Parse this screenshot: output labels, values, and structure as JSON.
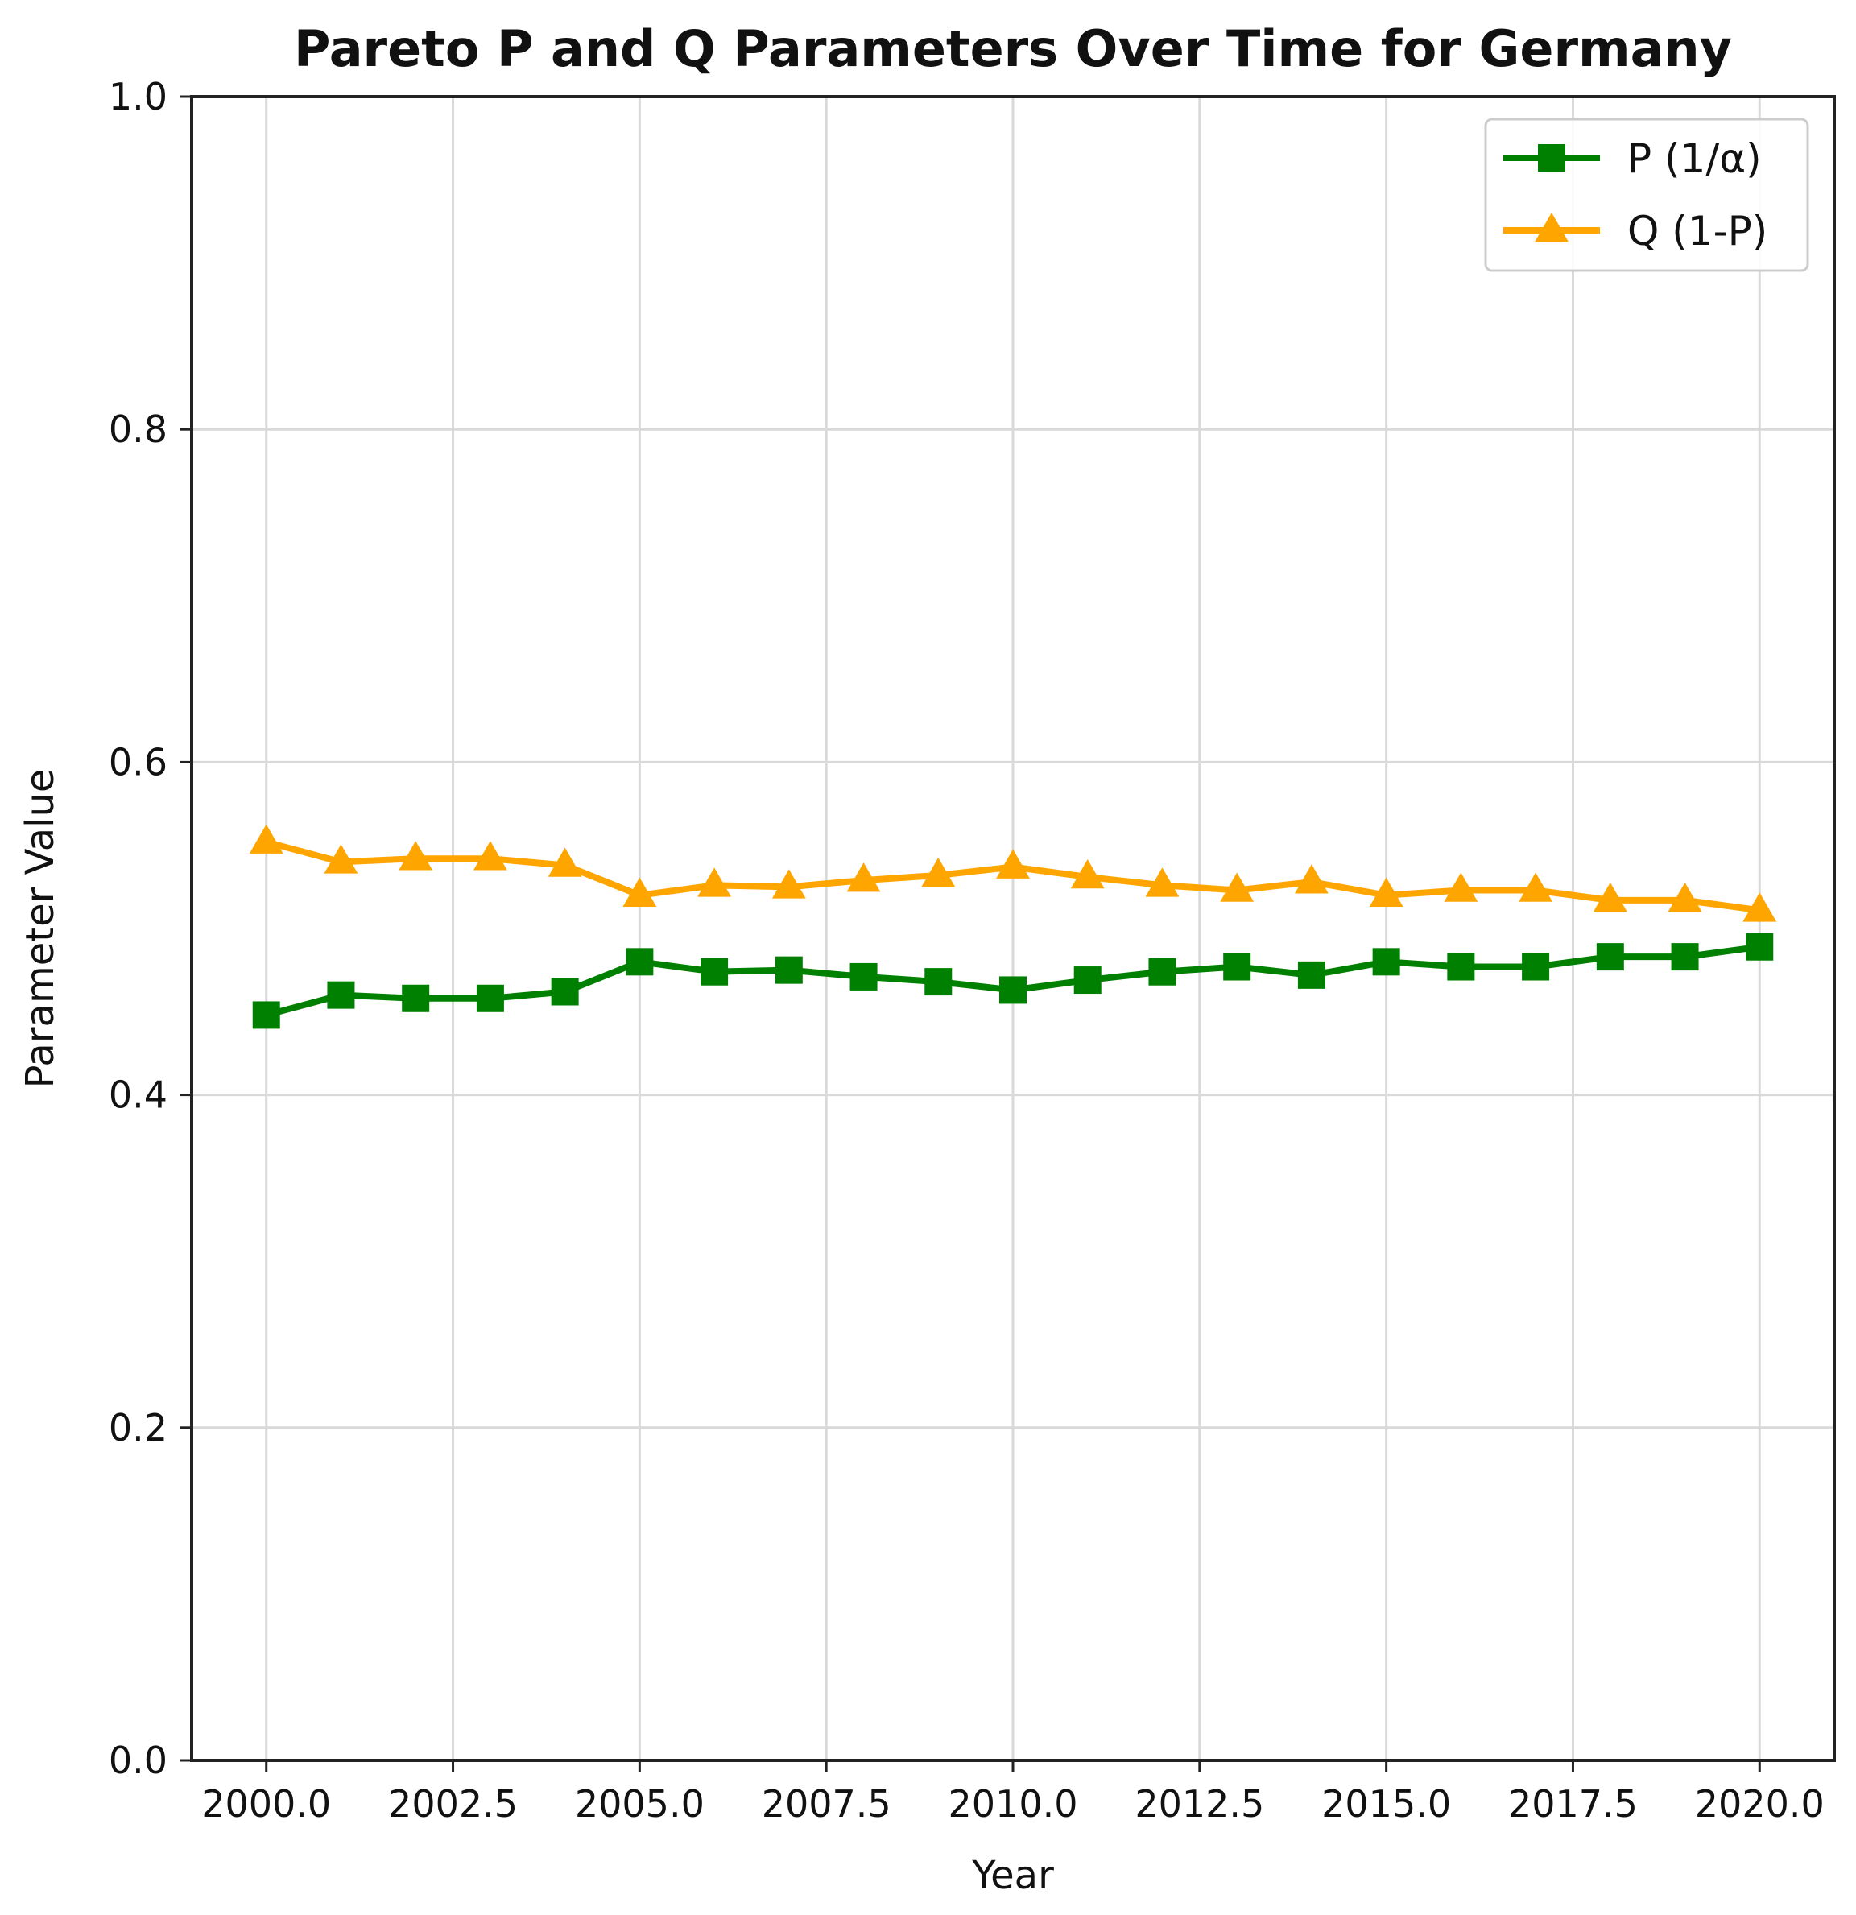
{
  "chart_data": {
    "type": "line",
    "title": "Pareto P and Q Parameters Over Time for Germany",
    "xlabel": "Year",
    "ylabel": "Parameter Value",
    "xlim": [
      1999.0,
      2021.0
    ],
    "ylim": [
      0.0,
      1.0
    ],
    "xticks": [
      2000.0,
      2002.5,
      2005.0,
      2007.5,
      2010.0,
      2012.5,
      2015.0,
      2017.5,
      2020.0
    ],
    "xtick_labels": [
      "2000.0",
      "2002.5",
      "2005.0",
      "2007.5",
      "2010.0",
      "2012.5",
      "2015.0",
      "2017.5",
      "2020.0"
    ],
    "yticks": [
      0.0,
      0.2,
      0.4,
      0.6,
      0.8,
      1.0
    ],
    "ytick_labels": [
      "0.0",
      "0.2",
      "0.4",
      "0.6",
      "0.8",
      "1.0"
    ],
    "grid": true,
    "legend_position": "top-right",
    "x": [
      2000,
      2001,
      2002,
      2003,
      2004,
      2005,
      2006,
      2007,
      2008,
      2009,
      2010,
      2011,
      2012,
      2013,
      2014,
      2015,
      2016,
      2017,
      2018,
      2019,
      2020
    ],
    "series": [
      {
        "name": "P (1/α)",
        "color": "#008000",
        "marker": "square",
        "values": [
          0.448,
          0.46,
          0.458,
          0.458,
          0.462,
          0.48,
          0.474,
          0.475,
          0.471,
          0.468,
          0.463,
          0.469,
          0.474,
          0.477,
          0.472,
          0.48,
          0.477,
          0.477,
          0.483,
          0.483,
          0.489
        ]
      },
      {
        "name": "Q (1-P)",
        "color": "#FFA500",
        "marker": "triangle",
        "values": [
          0.552,
          0.54,
          0.542,
          0.542,
          0.538,
          0.52,
          0.526,
          0.525,
          0.529,
          0.532,
          0.537,
          0.531,
          0.526,
          0.523,
          0.528,
          0.52,
          0.523,
          0.523,
          0.517,
          0.517,
          0.511
        ]
      }
    ]
  }
}
